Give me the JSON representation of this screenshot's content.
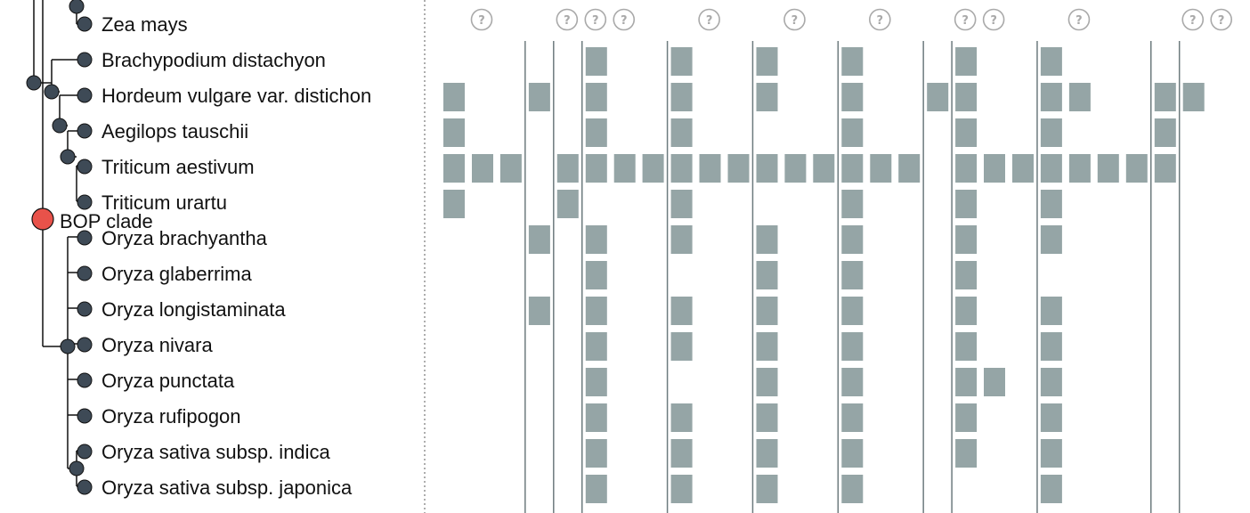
{
  "colors": {
    "cell": "#95a5a6",
    "node": "#3e4a56",
    "clade_node": "#e8524a",
    "line": "#111111",
    "help_icon": "#a9a9a9"
  },
  "help_icon_glyph": "?",
  "clade": {
    "label": "BOP clade"
  },
  "species": [
    {
      "name": "Zea mays",
      "cells": []
    },
    {
      "name": "Brachypodium distachyon",
      "cells": [
        5,
        8,
        11,
        14,
        18,
        21
      ]
    },
    {
      "name": "Hordeum vulgare var. distichon",
      "cells": [
        0,
        3,
        5,
        8,
        11,
        14,
        17,
        18,
        21,
        22,
        25,
        26
      ]
    },
    {
      "name": "Aegilops tauschii",
      "cells": [
        0,
        5,
        8,
        14,
        18,
        21,
        25
      ]
    },
    {
      "name": "Triticum aestivum",
      "cells": [
        0,
        1,
        2,
        4,
        5,
        6,
        7,
        8,
        9,
        10,
        11,
        12,
        13,
        14,
        15,
        16,
        18,
        19,
        20,
        21,
        22,
        23,
        24,
        25
      ]
    },
    {
      "name": "Triticum urartu",
      "cells": [
        0,
        4,
        8,
        14,
        18,
        21
      ]
    },
    {
      "name": "Oryza brachyantha",
      "cells": [
        3,
        5,
        8,
        11,
        14,
        18,
        21
      ]
    },
    {
      "name": "Oryza glaberrima",
      "cells": [
        5,
        11,
        14,
        18
      ]
    },
    {
      "name": "Oryza longistaminata",
      "cells": [
        3,
        5,
        8,
        11,
        14,
        18,
        21
      ]
    },
    {
      "name": "Oryza nivara",
      "cells": [
        5,
        8,
        11,
        14,
        18,
        21
      ]
    },
    {
      "name": "Oryza punctata",
      "cells": [
        5,
        11,
        14,
        18,
        19,
        21
      ]
    },
    {
      "name": "Oryza rufipogon",
      "cells": [
        5,
        8,
        11,
        14,
        18,
        21
      ]
    },
    {
      "name": "Oryza sativa subsp. indica",
      "cells": [
        5,
        8,
        11,
        14,
        18,
        21
      ]
    },
    {
      "name": "Oryza sativa subsp. japonica",
      "cells": [
        5,
        8,
        11,
        14,
        21
      ]
    }
  ],
  "column_groups": [
    {
      "start": 0,
      "end": 2
    },
    {
      "start": 3,
      "end": 3
    },
    {
      "start": 4,
      "end": 4
    },
    {
      "start": 5,
      "end": 7
    },
    {
      "start": 8,
      "end": 10
    },
    {
      "start": 11,
      "end": 13
    },
    {
      "start": 14,
      "end": 16
    },
    {
      "start": 17,
      "end": 17
    },
    {
      "start": 18,
      "end": 20
    },
    {
      "start": 21,
      "end": 24
    },
    {
      "start": 25,
      "end": 25
    },
    {
      "start": 26,
      "end": 26
    }
  ]
}
